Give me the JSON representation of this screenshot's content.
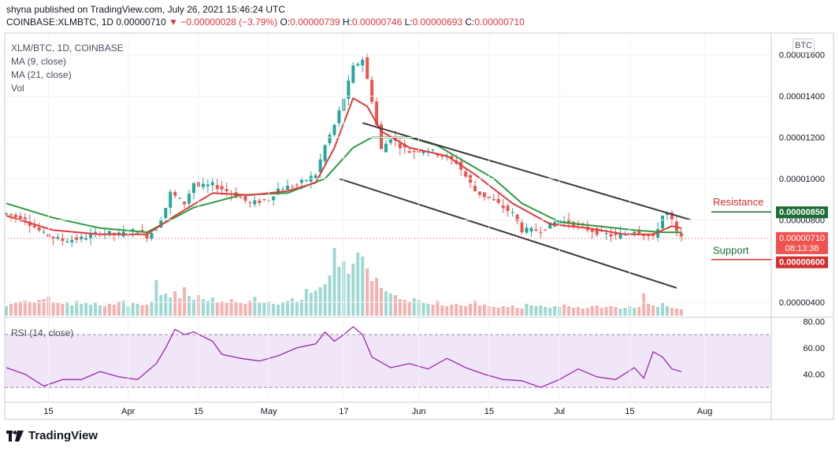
{
  "header": {
    "publisher": "shyna published on TradingView.com, July 26, 2021 15:46:24 UTC",
    "symbol": "COINBASE:XLMBTC, 1D",
    "last": "0.00000710",
    "change": "▼ −0.00000028 (−3.79%)",
    "o_label": "O:",
    "o_value": "0.00000739",
    "h_label": "H:",
    "h_value": "0.00000746",
    "l_label": "L:",
    "l_value": "0.00000693",
    "c_label": "C:",
    "c_value": "0.00000710"
  },
  "legend": {
    "title": "XLM/BTC, 1D, COINBASE",
    "ma9": "MA (9, close)",
    "ma21": "MA (21, close)",
    "vol": "Vol",
    "rsi": "RSI (14, close)"
  },
  "currency_button": "BTC",
  "footer": {
    "brand": "TradingView"
  },
  "colors": {
    "up": "#26a69a",
    "down": "#ef5350",
    "ma9": "#e23b3b",
    "ma21": "#2e9b43",
    "rsi": "#9c27b0",
    "rsi_band": "#e9dcf4",
    "resistance": "#1b6e35",
    "support": "#d32f2f"
  },
  "chart_data": [
    {
      "type": "candlestick",
      "title": "XLM/BTC, 1D, COINBASE",
      "x_ticks": [
        "15",
        "Apr",
        "15",
        "May",
        "17",
        "Jun",
        "15",
        "Jul",
        "15",
        "Aug"
      ],
      "y_ticks": [
        "0.00001600",
        "0.00001400",
        "0.00001200",
        "0.00001000",
        "0.00000800",
        "0.00000400"
      ],
      "ylim": [
        3.7e-06,
        1.66e-05
      ],
      "annotations": {
        "resistance_label": "Resistance",
        "resistance_value": "0.00000850",
        "support_label": "Support",
        "support_value": "0.00000600",
        "price_tag": "0.00000710",
        "countdown": "08:13:38"
      },
      "price_path": [
        [
          0,
          8.3
        ],
        [
          4,
          8.0
        ],
        [
          8,
          7.3
        ],
        [
          12,
          7.0
        ],
        [
          16,
          7.1
        ],
        [
          20,
          7.4
        ],
        [
          24,
          7.3
        ],
        [
          28,
          7.5
        ],
        [
          30,
          7.2
        ],
        [
          32,
          7.6
        ],
        [
          34,
          8.6
        ],
        [
          35,
          9.3
        ],
        [
          38,
          8.8
        ],
        [
          40,
          9.8
        ],
        [
          41,
          9.6
        ],
        [
          44,
          9.7
        ],
        [
          48,
          9.3
        ],
        [
          52,
          8.8
        ],
        [
          56,
          9.0
        ],
        [
          58,
          9.5
        ],
        [
          62,
          9.7
        ],
        [
          66,
          10.2
        ],
        [
          68,
          11.6
        ],
        [
          70,
          12.6
        ],
        [
          72,
          13.9
        ],
        [
          74,
          15.4
        ],
        [
          76,
          15.8
        ],
        [
          78,
          13.8
        ],
        [
          80,
          11.4
        ],
        [
          82,
          12.0
        ],
        [
          84,
          11.6
        ],
        [
          86,
          11.3
        ],
        [
          90,
          11.4
        ],
        [
          94,
          11.0
        ],
        [
          96,
          10.8
        ],
        [
          100,
          9.4
        ],
        [
          104,
          8.9
        ],
        [
          108,
          8.3
        ],
        [
          110,
          7.5
        ],
        [
          114,
          7.5
        ],
        [
          118,
          8.0
        ],
        [
          122,
          7.7
        ],
        [
          126,
          7.4
        ],
        [
          130,
          7.2
        ],
        [
          134,
          7.5
        ],
        [
          136,
          7.3
        ],
        [
          138,
          7.1
        ],
        [
          140,
          8.2
        ],
        [
          141,
          8.3
        ],
        [
          142,
          7.9
        ],
        [
          143,
          7.4
        ],
        [
          144,
          7.1
        ]
      ],
      "ma9": [
        [
          0,
          8.2
        ],
        [
          10,
          7.5
        ],
        [
          20,
          7.3
        ],
        [
          30,
          7.3
        ],
        [
          36,
          8.2
        ],
        [
          44,
          9.3
        ],
        [
          52,
          9.2
        ],
        [
          60,
          9.4
        ],
        [
          66,
          9.8
        ],
        [
          70,
          11.5
        ],
        [
          74,
          13.9
        ],
        [
          77,
          13.5
        ],
        [
          80,
          12.3
        ],
        [
          86,
          11.5
        ],
        [
          94,
          11.1
        ],
        [
          100,
          10.2
        ],
        [
          108,
          8.8
        ],
        [
          116,
          7.8
        ],
        [
          124,
          7.6
        ],
        [
          132,
          7.3
        ],
        [
          138,
          7.3
        ],
        [
          142,
          7.7
        ],
        [
          144,
          7.6
        ]
      ],
      "ma21": [
        [
          0,
          8.8
        ],
        [
          10,
          8.1
        ],
        [
          20,
          7.6
        ],
        [
          30,
          7.4
        ],
        [
          40,
          8.6
        ],
        [
          50,
          9.2
        ],
        [
          60,
          9.3
        ],
        [
          68,
          10.0
        ],
        [
          74,
          11.5
        ],
        [
          78,
          12.0
        ],
        [
          86,
          12.0
        ],
        [
          92,
          11.6
        ],
        [
          98,
          10.8
        ],
        [
          104,
          10.0
        ],
        [
          110,
          8.8
        ],
        [
          118,
          7.9
        ],
        [
          126,
          7.7
        ],
        [
          134,
          7.5
        ],
        [
          140,
          7.4
        ],
        [
          144,
          7.4
        ]
      ],
      "channel_upper": [
        [
          76,
          12.7
        ],
        [
          146,
          8.0
        ]
      ],
      "channel_lower": [
        [
          71,
          10.0
        ],
        [
          143,
          4.7
        ]
      ]
    },
    {
      "type": "line",
      "title": "RSI (14, close)",
      "y_ticks": [
        "80.00",
        "60.00",
        "40.00"
      ],
      "ylim": [
        20,
        82
      ],
      "bands": [
        30,
        70
      ],
      "values": [
        [
          0,
          45
        ],
        [
          4,
          40
        ],
        [
          8,
          31
        ],
        [
          12,
          36
        ],
        [
          16,
          36
        ],
        [
          20,
          42
        ],
        [
          24,
          38
        ],
        [
          28,
          36
        ],
        [
          32,
          48
        ],
        [
          34,
          60
        ],
        [
          36,
          74
        ],
        [
          38,
          70
        ],
        [
          40,
          72
        ],
        [
          44,
          65
        ],
        [
          46,
          55
        ],
        [
          50,
          52
        ],
        [
          54,
          50
        ],
        [
          58,
          54
        ],
        [
          62,
          60
        ],
        [
          66,
          63
        ],
        [
          68,
          72
        ],
        [
          70,
          65
        ],
        [
          72,
          70
        ],
        [
          74,
          76
        ],
        [
          76,
          70
        ],
        [
          78,
          53
        ],
        [
          82,
          45
        ],
        [
          86,
          48
        ],
        [
          90,
          44
        ],
        [
          94,
          52
        ],
        [
          98,
          45
        ],
        [
          102,
          40
        ],
        [
          106,
          36
        ],
        [
          110,
          35
        ],
        [
          114,
          30
        ],
        [
          118,
          36
        ],
        [
          122,
          44
        ],
        [
          126,
          38
        ],
        [
          130,
          36
        ],
        [
          134,
          45
        ],
        [
          136,
          37
        ],
        [
          138,
          57
        ],
        [
          140,
          53
        ],
        [
          142,
          44
        ],
        [
          144,
          42
        ]
      ]
    },
    {
      "type": "bar",
      "title": "Vol",
      "values": [
        1.2,
        1.5,
        1.6,
        1.8,
        1.9,
        1.8,
        1.7,
        2.0,
        2.1,
        2.4,
        1.7,
        1.6,
        1.5,
        1.7,
        1.3,
        1.9,
        1.5,
        1.6,
        1.4,
        1.6,
        1.3,
        1.2,
        1.5,
        1.4,
        1.8,
        1.9,
        1.2,
        1.6,
        1.5,
        1.3,
        1.4,
        1.8,
        4.5,
        2.6,
        2.8,
        2.3,
        3.1,
        2.2,
        3.6,
        2.5,
        2.0,
        2.6,
        2.1,
        1.9,
        2.3,
        1.7,
        1.8,
        1.6,
        2.1,
        1.8,
        1.6,
        1.5,
        1.9,
        2.4,
        1.7,
        1.6,
        1.8,
        1.5,
        1.4,
        1.7,
        1.9,
        2.2,
        1.8,
        2.0,
        3.4,
        2.9,
        3.2,
        3.6,
        4.0,
        5.1,
        8.6,
        6.2,
        6.9,
        5.3,
        6.6,
        8.0,
        7.5,
        6.0,
        4.4,
        4.8,
        3.5,
        3.1,
        2.8,
        2.6,
        2.1,
        2.0,
        1.8,
        2.2,
        2.0,
        1.6,
        1.5,
        1.4,
        1.9,
        1.3,
        1.2,
        1.4,
        1.5,
        1.3,
        1.2,
        1.5,
        1.9,
        1.3,
        1.4,
        1.2,
        1.1,
        1.0,
        1.2,
        1.1,
        1.3,
        1.0,
        0.9,
        1.5,
        1.3,
        1.2,
        1.3,
        1.1,
        1.0,
        1.2,
        1.1,
        1.4,
        1.2,
        1.0,
        1.1,
        0.9,
        1.0,
        1.2,
        1.3,
        1.0,
        1.1,
        1.2,
        1.1,
        0.9,
        1.0,
        1.2,
        1.0,
        1.1,
        2.8,
        1.5,
        1.3,
        1.1,
        1.6,
        1.2,
        1.0,
        0.9,
        0.8
      ]
    }
  ]
}
